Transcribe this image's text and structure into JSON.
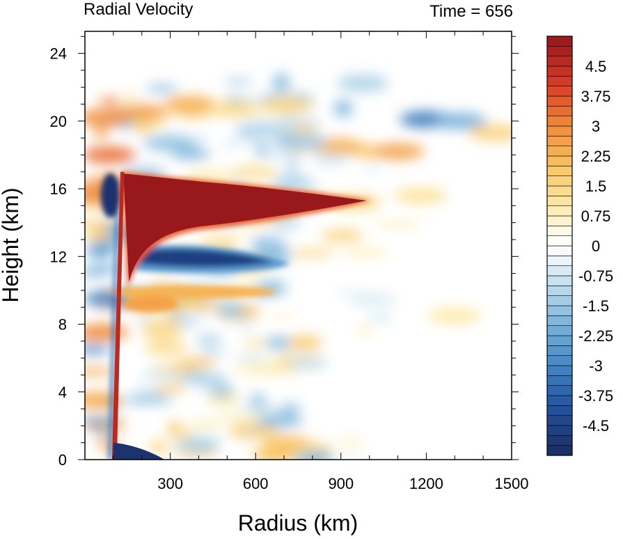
{
  "chart_data": {
    "type": "heatmap",
    "title_left": "Radial Velocity",
    "title_right": "Time = 656",
    "xlabel": "Radius (km)",
    "ylabel": "Height (km)",
    "xlim": [
      0,
      1500
    ],
    "ylim": [
      0,
      25.3
    ],
    "x_ticks": [
      300,
      600,
      900,
      1200,
      1500
    ],
    "x_tick_labels": [
      "300",
      "600",
      "900",
      "1200",
      "1500"
    ],
    "y_ticks": [
      0,
      4,
      8,
      12,
      16,
      20,
      24
    ],
    "y_tick_labels": [
      "0",
      "4",
      "8",
      "12",
      "16",
      "20",
      "24"
    ],
    "colorbar": {
      "min": -5.25,
      "max": 5.25,
      "step": 0.25,
      "labels": [
        "4.5",
        "3.75",
        "3",
        "2.25",
        "1.5",
        "0.75",
        "0",
        "-0.75",
        "-1.5",
        "-2.25",
        "-3",
        "-3.75",
        "-4.5"
      ],
      "label_values": [
        4.5,
        3.75,
        3,
        2.25,
        1.5,
        0.75,
        0,
        -0.75,
        -1.5,
        -2.25,
        -3,
        -3.75,
        -4.5
      ]
    },
    "features": [
      {
        "kind": "outflow-jet",
        "value": 5.0,
        "r_range": [
          130,
          1010
        ],
        "z_center": 15.0
      },
      {
        "kind": "inflow-band",
        "value": -4.2,
        "r_range": [
          180,
          720
        ],
        "z_center": 11.9
      },
      {
        "kind": "outflow-layer",
        "value": 2.6,
        "r_range": [
          200,
          600
        ],
        "z_center": 9.9
      },
      {
        "kind": "eyewall-updraft-tilt",
        "value": 5.0,
        "r_range": [
          105,
          135
        ],
        "z_range": [
          0,
          17
        ]
      },
      {
        "kind": "boundary-layer-inflow",
        "value": -5.0,
        "r_range": [
          100,
          280
        ],
        "z_range": [
          0,
          1
        ]
      },
      {
        "kind": "upper-inflow-core",
        "value": -5.0,
        "r_range": [
          55,
          115
        ],
        "z_center": 15.5
      }
    ]
  }
}
